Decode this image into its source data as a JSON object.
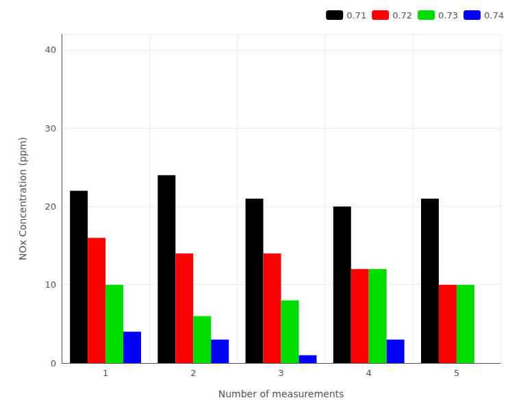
{
  "chart_data": {
    "type": "bar",
    "xlabel": "Number of measurements",
    "ylabel": "NOx Concentration (ppm)",
    "categories": [
      1,
      2,
      3,
      4,
      5
    ],
    "series": [
      {
        "name": "0.71",
        "color": "#000000",
        "values": [
          22,
          24,
          21,
          20,
          21
        ]
      },
      {
        "name": "0.72",
        "color": "#ff0000",
        "values": [
          16,
          14,
          14,
          12,
          10
        ]
      },
      {
        "name": "0.73",
        "color": "#00dd00",
        "values": [
          10,
          6,
          8,
          12,
          10
        ]
      },
      {
        "name": "0.74",
        "color": "#0000ff",
        "values": [
          4,
          3,
          1,
          3,
          0
        ]
      }
    ],
    "ylim": [
      0,
      42
    ],
    "yticks": [
      0,
      10,
      20,
      30,
      40
    ],
    "grid": true,
    "legend": "upper right"
  }
}
